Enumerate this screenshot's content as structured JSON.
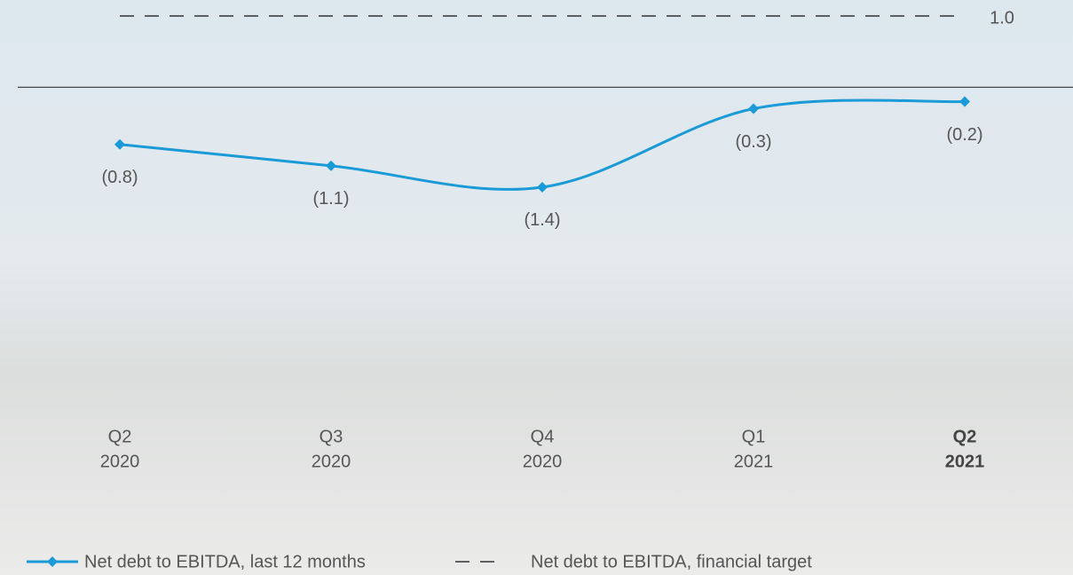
{
  "chart_data": {
    "type": "line",
    "categories": [
      [
        "Q2",
        "2020"
      ],
      [
        "Q3",
        "2020"
      ],
      [
        "Q4",
        "2020"
      ],
      [
        "Q1",
        "2021"
      ],
      [
        "Q2",
        "2021"
      ]
    ],
    "highlight_category": 4,
    "ylim": [
      -1.5,
      1.0
    ],
    "series": [
      {
        "name": "Net debt to EBITDA, last 12 months",
        "color": "#1a9ad6",
        "style": "solid",
        "marker": "diamond",
        "values": [
          -0.8,
          -1.1,
          -1.4,
          -0.3,
          -0.2
        ],
        "value_labels": [
          "(0.8)",
          "(1.1)",
          "(1.4)",
          "(0.3)",
          "(0.2)"
        ]
      },
      {
        "name": "Net debt to EBITDA, financial target",
        "color": "#333333",
        "style": "dashed",
        "values": [
          1.0,
          1.0,
          1.0,
          1.0,
          1.0
        ],
        "value_labels": [
          null,
          null,
          null,
          null,
          "1.0"
        ]
      }
    ]
  }
}
